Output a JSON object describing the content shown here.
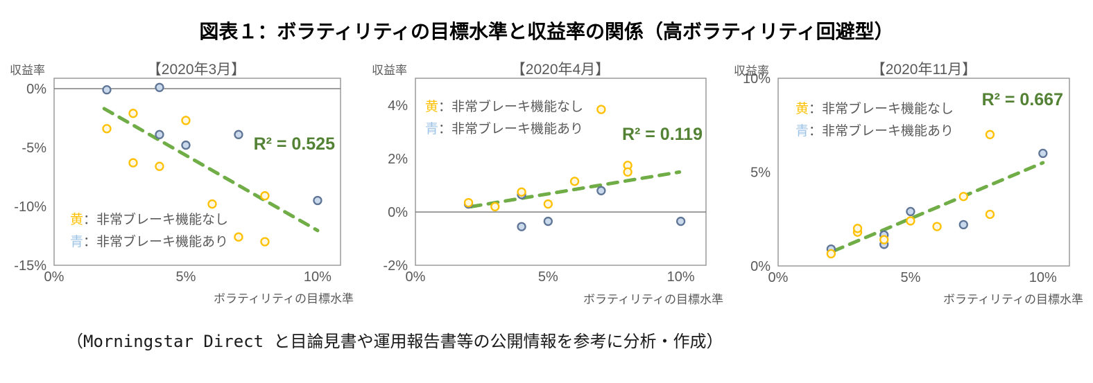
{
  "page": {
    "title": "図表１：ボラティリティの目標水準と収益率の関係（高ボラティリティ回避型）",
    "caption": "（Morningstar Direct と目論見書や運用報告書等の公開情報を参考に分析・作成）"
  },
  "colors": {
    "trend_green": "#70AD47",
    "r2_text_green": "#548235",
    "yellow_marker_stroke": "#FFC000",
    "yellow_marker_fill": "#FFF7E0",
    "blue_marker_stroke": "#5F7596",
    "blue_marker_fill": "#CBD9EC",
    "legend_yellow": "#FFC000",
    "legend_blue": "#9DC3E6",
    "axis_text_gray": "#595959"
  },
  "chart_data": [
    {
      "type": "scatter",
      "title": "【2020年3月】",
      "ylabel": "収益率",
      "xlabel": "ボラティリティの目標水準",
      "r2_label": "R² = 0.525",
      "xlim": [
        0,
        10.87
      ],
      "ylim": [
        -15,
        0.88
      ],
      "zero_line": true,
      "grid": false,
      "xticks": [
        {
          "v": 0,
          "label": "0%"
        },
        {
          "v": 5,
          "label": "5%"
        },
        {
          "v": 10,
          "label": "10%"
        }
      ],
      "yticks": [
        {
          "v": 0,
          "label": "0%"
        },
        {
          "v": -5,
          "label": "-5%"
        },
        {
          "v": -10,
          "label": "-10%"
        },
        {
          "v": -15,
          "label": "-15%"
        }
      ],
      "legend": [
        {
          "swatch": "黄",
          "text": "：非常ブレーキ機能なし",
          "color": "#FFC000"
        },
        {
          "swatch": "青",
          "text": "：非常ブレーキ機能あり",
          "color": "#9DC3E6"
        }
      ],
      "series": [
        {
          "name": "非常ブレーキ機能なし",
          "stroke": "#FFC000",
          "fill": "#FFF7E0",
          "points": [
            [
              2,
              -3.4
            ],
            [
              3,
              -2.1
            ],
            [
              3,
              -6.3
            ],
            [
              4,
              -6.6
            ],
            [
              5,
              -2.7
            ],
            [
              6,
              -9.8
            ],
            [
              7,
              -12.6
            ],
            [
              8,
              -9.1
            ],
            [
              8,
              -13.0
            ]
          ]
        },
        {
          "name": "非常ブレーキ機能あり",
          "stroke": "#5F7596",
          "fill": "#CBD9EC",
          "points": [
            [
              2,
              -0.1
            ],
            [
              4,
              0.1
            ],
            [
              4,
              -3.9
            ],
            [
              5,
              -4.8
            ],
            [
              7,
              -3.9
            ],
            [
              10,
              -9.5
            ]
          ]
        }
      ],
      "trendline": {
        "x1": 1.9,
        "y1": -1.7,
        "x2": 10,
        "y2": -12.05
      }
    },
    {
      "type": "scatter",
      "title": "【2020年4月】",
      "ylabel": "収益率",
      "xlabel": "ボラティリティの目標水準",
      "r2_label": "R² = 0.119",
      "xlim": [
        0,
        10.95
      ],
      "ylim": [
        -2,
        5.02
      ],
      "zero_line": true,
      "grid": false,
      "xticks": [
        {
          "v": 0,
          "label": "0%"
        },
        {
          "v": 5,
          "label": "5%"
        },
        {
          "v": 10,
          "label": "10%"
        }
      ],
      "yticks": [
        {
          "v": 4,
          "label": "4%"
        },
        {
          "v": 2,
          "label": "2%"
        },
        {
          "v": 0,
          "label": "0%"
        },
        {
          "v": -2,
          "label": "-2%"
        }
      ],
      "legend": [
        {
          "swatch": "黄",
          "text": "：非常ブレーキ機能なし",
          "color": "#FFC000"
        },
        {
          "swatch": "青",
          "text": "：非常ブレーキ機能あり",
          "color": "#9DC3E6"
        }
      ],
      "series": [
        {
          "name": "非常ブレーキ機能なし",
          "stroke": "#FFC000",
          "fill": "#FFF7E0",
          "points": [
            [
              2,
              0.35
            ],
            [
              3,
              0.2
            ],
            [
              4,
              0.75
            ],
            [
              5,
              0.3
            ],
            [
              6,
              1.15
            ],
            [
              7,
              3.85
            ],
            [
              8,
              1.75
            ],
            [
              8,
              1.5
            ]
          ]
        },
        {
          "name": "非常ブレーキ機能あり",
          "stroke": "#5F7596",
          "fill": "#CBD9EC",
          "points": [
            [
              2,
              0.3
            ],
            [
              4,
              0.65
            ],
            [
              4,
              -0.55
            ],
            [
              5,
              -0.35
            ],
            [
              7,
              0.8
            ],
            [
              10,
              -0.35
            ]
          ]
        }
      ],
      "trendline": {
        "x1": 2.1,
        "y1": 0.2,
        "x2": 9.95,
        "y2": 1.5
      }
    },
    {
      "type": "scatter",
      "title": "【2020年11月】",
      "ylabel": "収益率",
      "xlabel": "ボラティリティの目標水準",
      "r2_label": "R² = 0.667",
      "xlim": [
        0,
        11
      ],
      "ylim": [
        0,
        10
      ],
      "zero_line": false,
      "grid": false,
      "xticks": [
        {
          "v": 0,
          "label": "0%"
        },
        {
          "v": 5,
          "label": "5%"
        },
        {
          "v": 10,
          "label": "10%"
        }
      ],
      "yticks": [
        {
          "v": 10,
          "label": "10%"
        },
        {
          "v": 5,
          "label": "5%"
        },
        {
          "v": 0,
          "label": "0%"
        }
      ],
      "legend": [
        {
          "swatch": "黄",
          "text": "：非常ブレーキ機能なし",
          "color": "#FFC000"
        },
        {
          "swatch": "青",
          "text": "：非常ブレーキ機能あり",
          "color": "#9DC3E6"
        }
      ],
      "series": [
        {
          "name": "非常ブレーキ機能なし",
          "stroke": "#FFC000",
          "fill": "#FFF7E0",
          "points": [
            [
              2,
              0.65
            ],
            [
              3,
              1.8
            ],
            [
              3,
              2.0
            ],
            [
              4,
              1.4
            ],
            [
              5,
              2.4
            ],
            [
              6,
              2.1
            ],
            [
              7,
              3.7
            ],
            [
              8,
              2.75
            ],
            [
              8,
              7.0
            ]
          ]
        },
        {
          "name": "非常ブレーキ機能あり",
          "stroke": "#5F7596",
          "fill": "#CBD9EC",
          "points": [
            [
              2,
              0.9
            ],
            [
              4,
              1.15
            ],
            [
              4,
              1.65
            ],
            [
              5,
              2.9
            ],
            [
              7,
              2.2
            ],
            [
              10,
              6.0
            ]
          ]
        }
      ],
      "trendline": {
        "x1": 2.1,
        "y1": 0.8,
        "x2": 10,
        "y2": 5.5
      }
    }
  ]
}
